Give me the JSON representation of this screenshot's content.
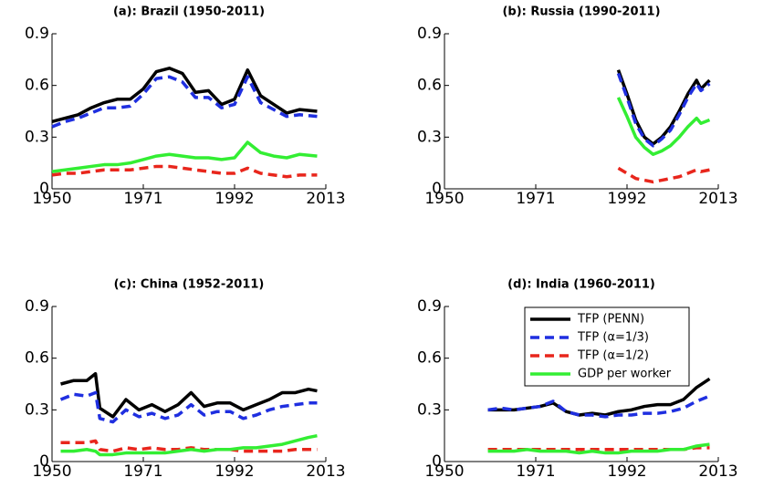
{
  "chart_data": [
    {
      "type": "line",
      "title": "(a): Brazil (1950-2011)",
      "xlim": [
        1950,
        2013
      ],
      "xticks": [
        1950,
        1971,
        1992,
        2013
      ],
      "ylim": [
        0,
        0.9
      ],
      "yticks": [
        0,
        0.3,
        0.6,
        0.9
      ],
      "x": [
        1950,
        1953,
        1956,
        1959,
        1962,
        1965,
        1968,
        1971,
        1974,
        1977,
        1980,
        1983,
        1986,
        1989,
        1992,
        1995,
        1998,
        2001,
        2004,
        2007,
        2011
      ],
      "series": [
        {
          "color": "#000000",
          "dash": false,
          "values": [
            0.39,
            0.41,
            0.43,
            0.47,
            0.5,
            0.52,
            0.52,
            0.58,
            0.68,
            0.7,
            0.67,
            0.56,
            0.57,
            0.49,
            0.52,
            0.69,
            0.54,
            0.49,
            0.44,
            0.46,
            0.45
          ]
        },
        {
          "color": "#1f2fe0",
          "dash": true,
          "values": [
            0.36,
            0.39,
            0.41,
            0.44,
            0.47,
            0.47,
            0.48,
            0.55,
            0.64,
            0.65,
            0.62,
            0.53,
            0.53,
            0.47,
            0.49,
            0.65,
            0.5,
            0.46,
            0.42,
            0.43,
            0.42
          ]
        },
        {
          "color": "#e8261c",
          "dash": true,
          "values": [
            0.08,
            0.09,
            0.09,
            0.1,
            0.11,
            0.11,
            0.11,
            0.12,
            0.13,
            0.13,
            0.12,
            0.11,
            0.1,
            0.09,
            0.09,
            0.12,
            0.09,
            0.08,
            0.07,
            0.08,
            0.08
          ]
        },
        {
          "color": "#33ee33",
          "dash": false,
          "values": [
            0.1,
            0.11,
            0.12,
            0.13,
            0.14,
            0.14,
            0.15,
            0.17,
            0.19,
            0.2,
            0.19,
            0.18,
            0.18,
            0.17,
            0.18,
            0.27,
            0.21,
            0.19,
            0.18,
            0.2,
            0.19
          ]
        }
      ]
    },
    {
      "type": "line",
      "title": "(b): Russia (1990-2011)",
      "xlim": [
        1950,
        2013
      ],
      "xticks": [
        1950,
        1971,
        1992,
        2013
      ],
      "ylim": [
        0,
        0.9
      ],
      "yticks": [
        0,
        0.3,
        0.6,
        0.9
      ],
      "x": [
        1990,
        1992,
        1994,
        1996,
        1998,
        2000,
        2002,
        2004,
        2006,
        2008,
        2009,
        2011
      ],
      "series": [
        {
          "color": "#000000",
          "dash": false,
          "values": [
            0.69,
            0.55,
            0.4,
            0.3,
            0.26,
            0.3,
            0.36,
            0.45,
            0.55,
            0.63,
            0.58,
            0.63
          ]
        },
        {
          "color": "#1f2fe0",
          "dash": true,
          "values": [
            0.67,
            0.53,
            0.38,
            0.29,
            0.25,
            0.29,
            0.34,
            0.43,
            0.53,
            0.61,
            0.57,
            0.61
          ]
        },
        {
          "color": "#e8261c",
          "dash": true,
          "values": [
            0.12,
            0.09,
            0.06,
            0.05,
            0.04,
            0.05,
            0.06,
            0.07,
            0.09,
            0.11,
            0.1,
            0.11
          ]
        },
        {
          "color": "#33ee33",
          "dash": false,
          "values": [
            0.53,
            0.42,
            0.3,
            0.24,
            0.2,
            0.22,
            0.25,
            0.3,
            0.36,
            0.41,
            0.38,
            0.4
          ]
        }
      ]
    },
    {
      "type": "line",
      "title": "(c): China (1952-2011)",
      "xlim": [
        1950,
        2013
      ],
      "xticks": [
        1950,
        1971,
        1992,
        2013
      ],
      "ylim": [
        0,
        0.9
      ],
      "yticks": [
        0,
        0.3,
        0.6,
        0.9
      ],
      "x": [
        1952,
        1955,
        1958,
        1960,
        1961,
        1964,
        1967,
        1970,
        1973,
        1976,
        1979,
        1982,
        1985,
        1988,
        1991,
        1994,
        1997,
        2000,
        2003,
        2006,
        2009,
        2011
      ],
      "series": [
        {
          "color": "#000000",
          "dash": false,
          "values": [
            0.45,
            0.47,
            0.47,
            0.51,
            0.31,
            0.26,
            0.36,
            0.3,
            0.33,
            0.29,
            0.33,
            0.4,
            0.32,
            0.34,
            0.34,
            0.3,
            0.33,
            0.36,
            0.4,
            0.4,
            0.42,
            0.41
          ]
        },
        {
          "color": "#1f2fe0",
          "dash": true,
          "values": [
            0.36,
            0.39,
            0.38,
            0.4,
            0.25,
            0.23,
            0.3,
            0.26,
            0.28,
            0.25,
            0.27,
            0.33,
            0.27,
            0.29,
            0.29,
            0.25,
            0.27,
            0.3,
            0.32,
            0.33,
            0.34,
            0.34
          ]
        },
        {
          "color": "#e8261c",
          "dash": true,
          "values": [
            0.11,
            0.11,
            0.11,
            0.12,
            0.07,
            0.06,
            0.08,
            0.07,
            0.08,
            0.07,
            0.07,
            0.08,
            0.07,
            0.07,
            0.07,
            0.06,
            0.06,
            0.06,
            0.06,
            0.07,
            0.07,
            0.07
          ]
        },
        {
          "color": "#33ee33",
          "dash": false,
          "values": [
            0.06,
            0.06,
            0.07,
            0.06,
            0.04,
            0.04,
            0.05,
            0.05,
            0.05,
            0.05,
            0.06,
            0.07,
            0.06,
            0.07,
            0.07,
            0.08,
            0.08,
            0.09,
            0.1,
            0.12,
            0.14,
            0.15
          ]
        }
      ]
    },
    {
      "type": "line",
      "title": "(d): India (1960-2011)",
      "xlim": [
        1950,
        2013
      ],
      "xticks": [
        1950,
        1971,
        1992,
        2013
      ],
      "ylim": [
        0,
        0.9
      ],
      "yticks": [
        0,
        0.3,
        0.6,
        0.9
      ],
      "legend": "upper center",
      "x": [
        1960,
        1963,
        1966,
        1969,
        1972,
        1975,
        1978,
        1981,
        1984,
        1987,
        1990,
        1993,
        1996,
        1999,
        2002,
        2005,
        2008,
        2011
      ],
      "series": [
        {
          "name": "TFP (PENN)",
          "color": "#000000",
          "dash": false,
          "values": [
            0.3,
            0.3,
            0.3,
            0.31,
            0.32,
            0.34,
            0.29,
            0.27,
            0.28,
            0.27,
            0.29,
            0.3,
            0.32,
            0.33,
            0.33,
            0.36,
            0.43,
            0.48
          ]
        },
        {
          "name": "TFP (α=1/3)",
          "color": "#1f2fe0",
          "dash": true,
          "values": [
            0.3,
            0.31,
            0.3,
            0.31,
            0.32,
            0.35,
            0.29,
            0.27,
            0.27,
            0.26,
            0.27,
            0.27,
            0.28,
            0.28,
            0.29,
            0.31,
            0.35,
            0.38
          ]
        },
        {
          "name": "TFP (α=1/2)",
          "color": "#e8261c",
          "dash": true,
          "values": [
            0.07,
            0.07,
            0.07,
            0.07,
            0.07,
            0.07,
            0.07,
            0.07,
            0.07,
            0.07,
            0.07,
            0.07,
            0.07,
            0.07,
            0.07,
            0.07,
            0.08,
            0.08
          ]
        },
        {
          "name": "GDP per worker",
          "color": "#33ee33",
          "dash": false,
          "values": [
            0.06,
            0.06,
            0.06,
            0.07,
            0.06,
            0.06,
            0.06,
            0.05,
            0.06,
            0.05,
            0.05,
            0.06,
            0.06,
            0.06,
            0.07,
            0.07,
            0.09,
            0.1
          ]
        }
      ]
    }
  ]
}
